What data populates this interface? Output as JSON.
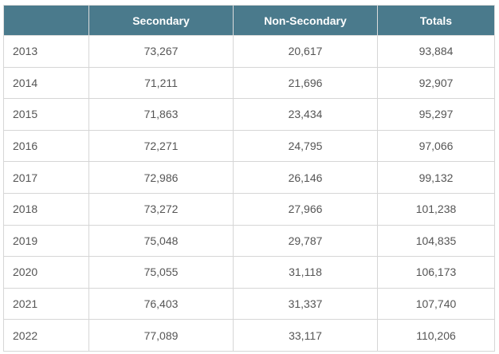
{
  "table": {
    "headers": [
      "",
      "Secondary",
      "Non-Secondary",
      "Totals"
    ],
    "rows": [
      [
        "2013",
        "73,267",
        "20,617",
        "93,884"
      ],
      [
        "2014",
        "71,211",
        "21,696",
        "92,907"
      ],
      [
        "2015",
        "71,863",
        "23,434",
        "95,297"
      ],
      [
        "2016",
        "72,271",
        "24,795",
        "97,066"
      ],
      [
        "2017",
        "72,986",
        "26,146",
        "99,132"
      ],
      [
        "2018",
        "73,272",
        "27,966",
        "101,238"
      ],
      [
        "2019",
        "75,048",
        "29,787",
        "104,835"
      ],
      [
        "2020",
        "75,055",
        "31,118",
        "106,173"
      ],
      [
        "2021",
        "76,403",
        "31,337",
        "107,740"
      ],
      [
        "2022",
        "77,089",
        "33,117",
        "110,206"
      ]
    ]
  },
  "colors": {
    "header_bg": "#4a7a8c",
    "header_text": "#ffffff",
    "cell_text": "#555555",
    "border": "#d6d6d6"
  }
}
